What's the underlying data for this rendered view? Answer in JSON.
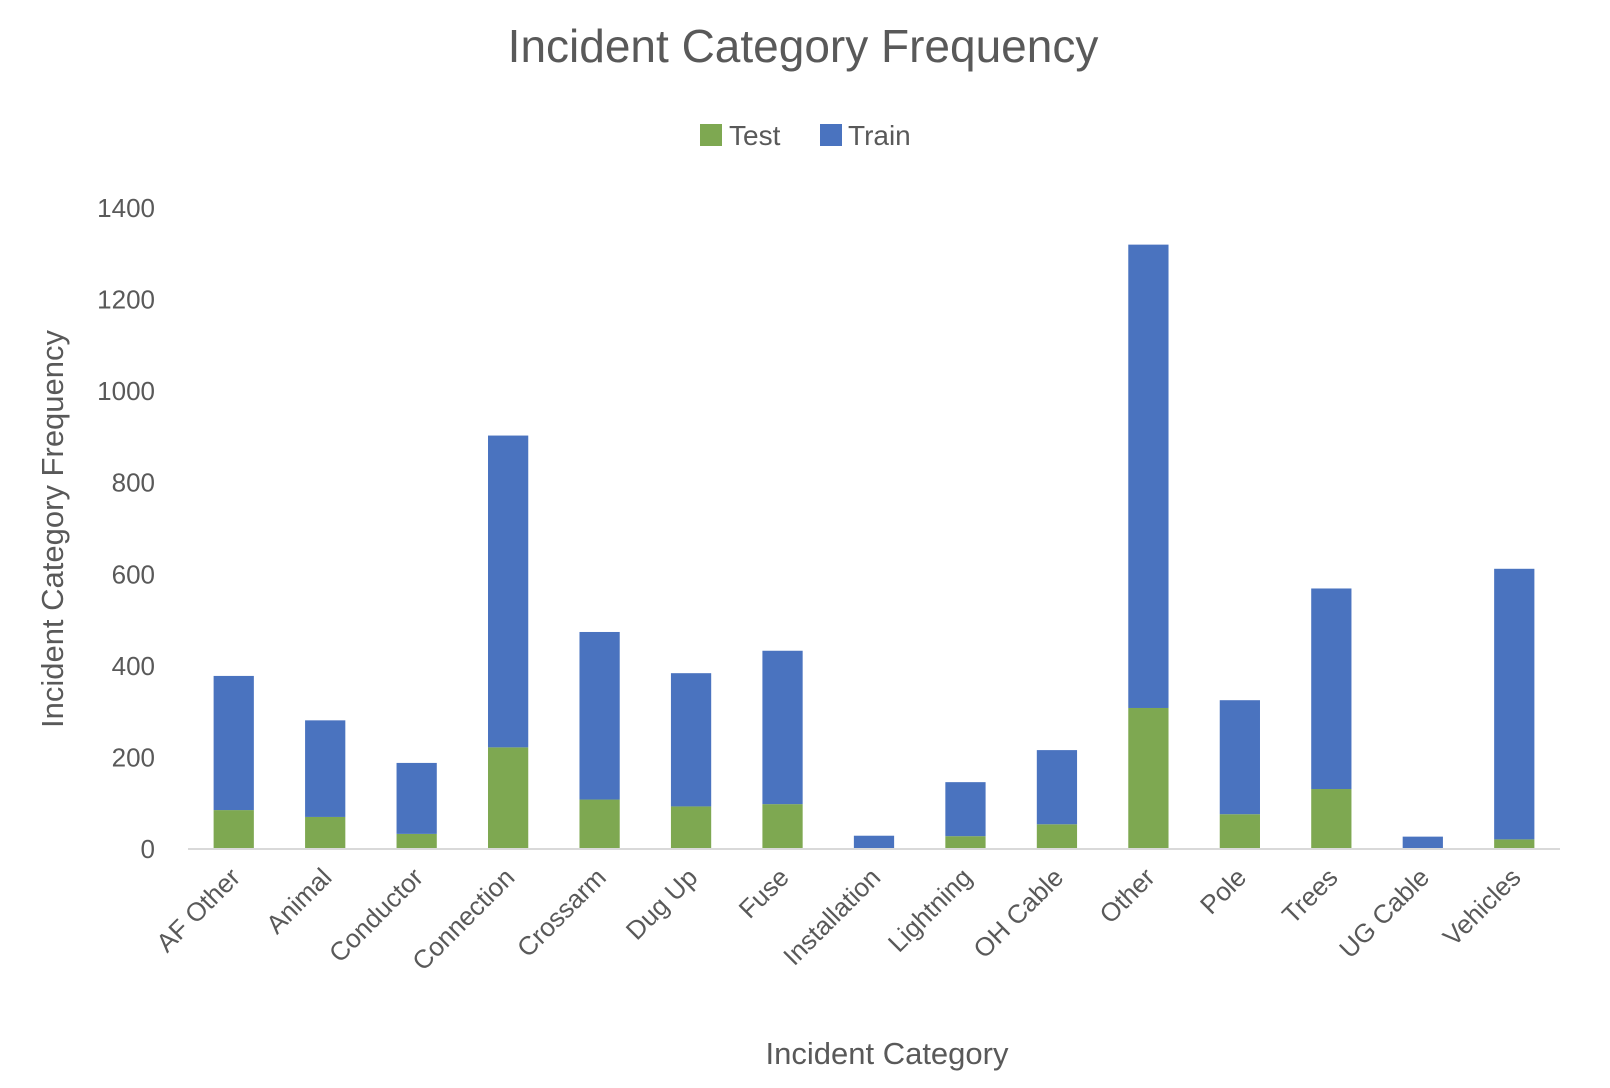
{
  "chart_data": {
    "type": "bar",
    "stacked": true,
    "title": "Incident Category Frequency",
    "xlabel": "Incident Category",
    "ylabel": "Incident Category Frequency",
    "ylim": [
      0,
      1400
    ],
    "yticks": [
      0,
      200,
      400,
      600,
      800,
      1000,
      1200,
      1400
    ],
    "grid": false,
    "legend_position": "top",
    "categories": [
      "AF Other",
      "Animal",
      "Conductor",
      "Connection",
      "Crossarm",
      "Dug Up",
      "Fuse",
      "Installation",
      "Lightning",
      "OH Cable",
      "Other",
      "Pole",
      "Trees",
      "UG Cable",
      "Vehicles"
    ],
    "series": [
      {
        "name": "Test",
        "color": "#7ea851",
        "values": [
          85,
          70,
          33,
          222,
          108,
          93,
          98,
          2,
          28,
          54,
          308,
          76,
          131,
          2,
          21
        ]
      },
      {
        "name": "Train",
        "color": "#4a73bf",
        "values": [
          293,
          211,
          155,
          681,
          366,
          291,
          335,
          27,
          118,
          162,
          1012,
          249,
          438,
          25,
          591
        ]
      }
    ]
  }
}
